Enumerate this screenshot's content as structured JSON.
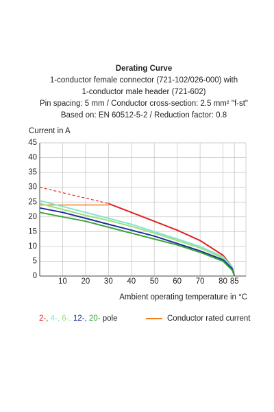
{
  "chart_data": {
    "type": "line",
    "title": "Derating Curve",
    "subtitle": [
      "1-conductor female connector (721-102/026-000) with",
      "1-conductor male header (721-602)",
      "Pin spacing: 5 mm / Conductor cross-section: 2.5 mm² \"f-st\"",
      "Based on: EN 60512-5-2 / Reduction factor: 0.8"
    ],
    "ylabel": "Current in A",
    "xlabel": "Ambient operating temperature in °C",
    "xlim": [
      0,
      90
    ],
    "ylim": [
      0,
      45
    ],
    "xticks": [
      10,
      20,
      30,
      40,
      50,
      60,
      70,
      80,
      85
    ],
    "yticks": [
      0,
      5,
      10,
      15,
      20,
      25,
      30,
      35,
      40,
      45
    ],
    "grid": true,
    "series": [
      {
        "name": "2-,",
        "color": "#e02020",
        "x": [
          30,
          40,
          50,
          60,
          70,
          80,
          84,
          85
        ],
        "values": [
          24.5,
          21.5,
          18.5,
          15.5,
          12,
          7,
          3,
          0
        ]
      },
      {
        "name": "4-,",
        "color": "#86e3cf",
        "x": [
          0,
          10,
          20,
          30,
          40,
          50,
          60,
          70,
          80,
          84,
          85
        ],
        "values": [
          25.5,
          23.5,
          21.5,
          19.5,
          17.5,
          15,
          12.5,
          10,
          6.5,
          3,
          0
        ]
      },
      {
        "name": "6-,",
        "color": "#9fe07c",
        "x": [
          0,
          10,
          20,
          30,
          40,
          50,
          60,
          70,
          80,
          84,
          85
        ],
        "values": [
          24.5,
          22.5,
          20.5,
          18.8,
          16.8,
          14.5,
          12,
          9.5,
          6,
          2.5,
          0
        ]
      },
      {
        "name": "12-,",
        "color": "#1c2d9e",
        "x": [
          0,
          10,
          20,
          30,
          40,
          50,
          60,
          70,
          80,
          84,
          85
        ],
        "values": [
          23,
          21.5,
          19.5,
          17.5,
          15.5,
          13.5,
          11,
          8.5,
          5.5,
          2.5,
          0
        ]
      },
      {
        "name": "20-",
        "color": "#3aa535",
        "x": [
          0,
          10,
          20,
          30,
          40,
          50,
          60,
          70,
          80,
          84,
          85
        ],
        "values": [
          21.5,
          20,
          18.5,
          16.5,
          14.5,
          12.5,
          10.5,
          8,
          5,
          2,
          0
        ]
      }
    ],
    "legend_suffix": "pole",
    "extrapolation": {
      "color": "#e02020",
      "dashed": true,
      "x": [
        0,
        30
      ],
      "values": [
        30,
        24.5
      ]
    },
    "rated_current": {
      "name": "Conductor rated current",
      "color": "#f07c1a",
      "x": [
        0,
        30
      ],
      "values": [
        24,
        24
      ]
    }
  }
}
